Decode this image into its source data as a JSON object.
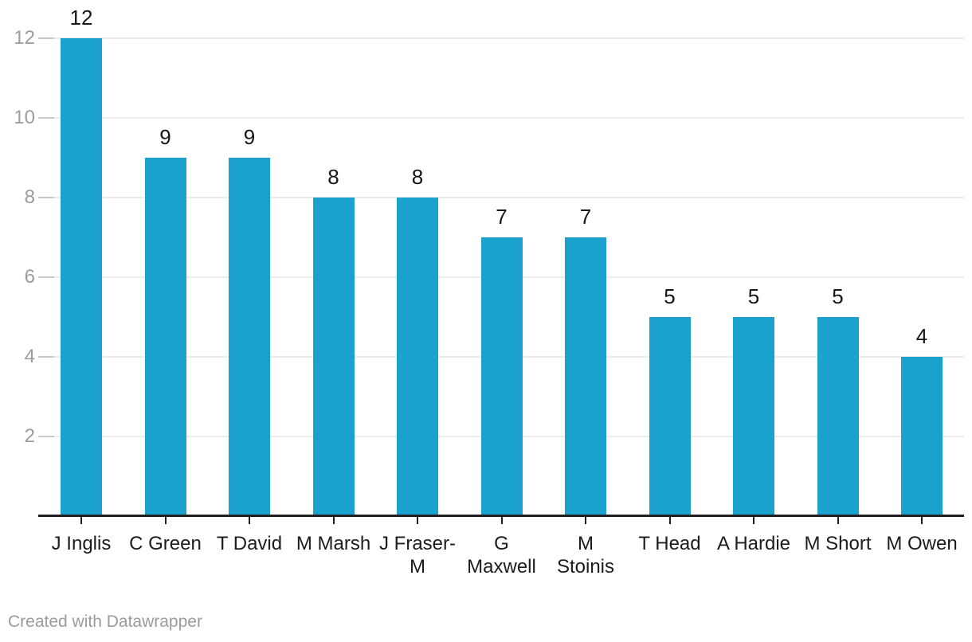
{
  "chart_data": {
    "type": "bar",
    "categories": [
      "J Inglis",
      "C Green",
      "T David",
      "M Marsh",
      "J Fraser-M",
      "G Maxwell",
      "M Stoinis",
      "T Head",
      "A Hardie",
      "M Short",
      "M Owen"
    ],
    "category_lines": [
      [
        "J Inglis"
      ],
      [
        "C Green"
      ],
      [
        "T David"
      ],
      [
        "M Marsh"
      ],
      [
        "J Fraser-",
        "M"
      ],
      [
        "G",
        "Maxwell"
      ],
      [
        "M",
        "Stoinis"
      ],
      [
        "T Head"
      ],
      [
        "A Hardie"
      ],
      [
        "M Short"
      ],
      [
        "M Owen"
      ]
    ],
    "values": [
      12,
      9,
      9,
      8,
      8,
      7,
      7,
      5,
      5,
      5,
      4
    ],
    "y_ticks": [
      2,
      4,
      6,
      8,
      10,
      12
    ],
    "ylim": [
      0,
      12
    ],
    "grid": "horizontal-only",
    "legend": "none",
    "value_labels_shown": true
  },
  "footer": {
    "credit": "Created with Datawrapper"
  },
  "colors": {
    "bar": "#1aa1ce",
    "background": "#ffffff",
    "gridline": "#ececec",
    "grid_tick": "#c9c9c9",
    "axis_line": "#1f1f1f",
    "value_label": "#161616",
    "category_label": "#1c1c1c",
    "y_tick_label": "#9c9c9c",
    "footer_text": "#9b9b9b"
  }
}
